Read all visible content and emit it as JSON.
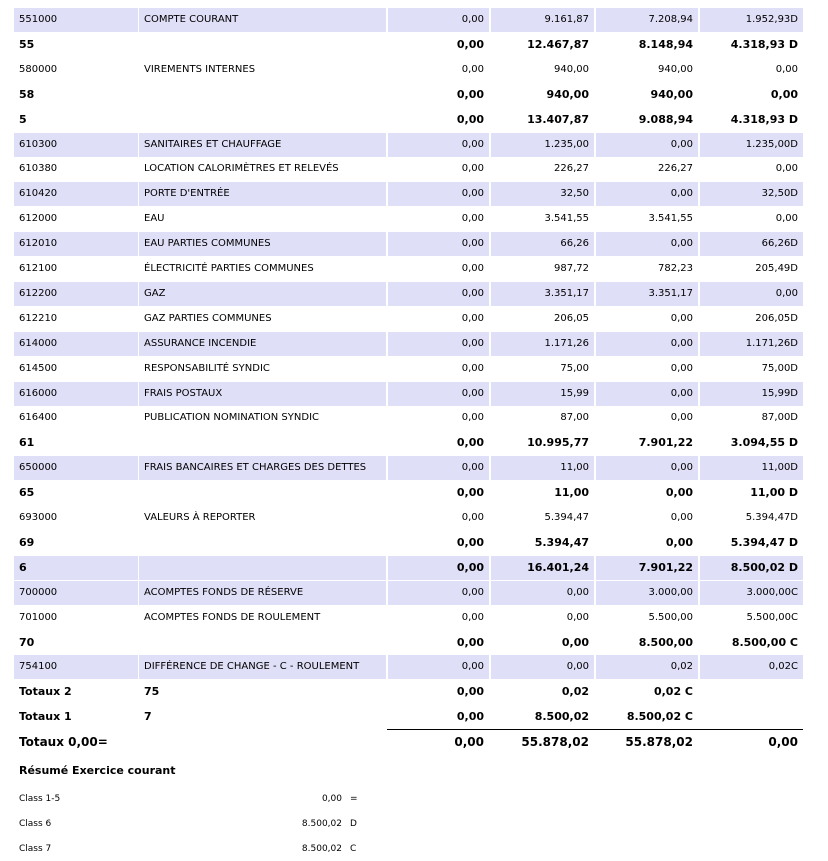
{
  "table": {
    "rows": [
      [
        "551000",
        "COMPTE COURANT",
        "0,00",
        "9.161,87",
        "7.208,94",
        "1.952,93D"
      ],
      [
        "55",
        null,
        "0,00",
        "12.467,87",
        "8.148,94",
        "4.318,93 D"
      ],
      [
        "580000",
        "VIREMENTS INTERNES",
        "0,00",
        "940,00",
        "940,00",
        "0,00"
      ],
      [
        "58",
        null,
        "0,00",
        "940,00",
        "940,00",
        "0,00"
      ],
      [
        "5",
        null,
        "0,00",
        "13.407,87",
        "9.088,94",
        "4.318,93 D"
      ],
      [
        "610300",
        "SANITAIRES ET CHAUFFAGE",
        "0,00",
        "1.235,00",
        "0,00",
        "1.235,00D"
      ],
      [
        "610380",
        "LOCATION CALORIMÈTRES ET RELEVÉS",
        "0,00",
        "226,27",
        "226,27",
        "0,00"
      ],
      [
        "610420",
        "PORTE D'ENTRÉE",
        "0,00",
        "32,50",
        "0,00",
        "32,50D"
      ],
      [
        "612000",
        "EAU",
        "0,00",
        "3.541,55",
        "3.541,55",
        "0,00"
      ],
      [
        "612010",
        "EAU PARTIES COMMUNES",
        "0,00",
        "66,26",
        "0,00",
        "66,26D"
      ],
      [
        "612100",
        "ÉLECTRICITÉ PARTIES COMMUNES",
        "0,00",
        "987,72",
        "782,23",
        "205,49D"
      ],
      [
        "612200",
        "GAZ",
        "0,00",
        "3.351,17",
        "3.351,17",
        "0,00"
      ],
      [
        "612210",
        "GAZ PARTIES COMMUNES",
        "0,00",
        "206,05",
        "0,00",
        "206,05D"
      ],
      [
        "614000",
        "ASSURANCE INCENDIE",
        "0,00",
        "1.171,26",
        "0,00",
        "1.171,26D"
      ],
      [
        "614500",
        "RESPONSABILITÉ SYNDIC",
        "0,00",
        "75,00",
        "0,00",
        "75,00D"
      ],
      [
        "616000",
        "FRAIS POSTAUX",
        "0,00",
        "15,99",
        "0,00",
        "15,99D"
      ],
      [
        "616400",
        "PUBLICATION NOMINATION SYNDIC",
        "0,00",
        "87,00",
        "0,00",
        "87,00D"
      ],
      [
        "61",
        null,
        "0,00",
        "10.995,77",
        "7.901,22",
        "3.094,55 D"
      ],
      [
        "650000",
        "FRAIS BANCAIRES ET CHARGES DES DETTES",
        "0,00",
        "11,00",
        "0,00",
        "11,00D"
      ],
      [
        "65",
        null,
        "0,00",
        "11,00",
        "0,00",
        "11,00 D"
      ],
      [
        "693000",
        "VALEURS À REPORTER",
        "0,00",
        "5.394,47",
        "0,00",
        "5.394,47D"
      ],
      [
        "69",
        null,
        "0,00",
        "5.394,47",
        "0,00",
        "5.394,47 D"
      ],
      [
        "6",
        null,
        "0,00",
        "16.401,24",
        "7.901,22",
        "8.500,02 D"
      ],
      [
        "700000",
        "ACOMPTES FONDS DE RÉSERVE",
        "0,00",
        "0,00",
        "3.000,00",
        "3.000,00C"
      ],
      [
        "701000",
        "ACOMPTES FONDS DE ROULEMENT",
        "0,00",
        "0,00",
        "5.500,00",
        "5.500,00C"
      ],
      [
        "70",
        null,
        "0,00",
        "0,00",
        "8.500,00",
        "8.500,00 C"
      ],
      [
        "754100",
        "DIFFÉRENCE DE CHANGE - C - ROULEMENT",
        "0,00",
        "0,00",
        "0,02",
        "0,02C"
      ],
      [
        "Totaux 2",
        "75",
        "0,00",
        "0,02",
        "0,02 C",
        null
      ],
      [
        "Totaux 1",
        "7",
        "0,00",
        "8.500,02",
        "8.500,02 C",
        null
      ],
      [
        "Totaux 0,00=",
        null,
        "0,00",
        "55.878,02",
        "55.878,02",
        "0,00"
      ]
    ]
  },
  "summary": {
    "title": "Résumé Exercice courant",
    "rows": [
      [
        "Class 1-5",
        "0,00",
        "="
      ],
      [
        "Class 6",
        "8.500,02",
        "D"
      ],
      [
        "Class 7",
        "8.500,02",
        "C"
      ]
    ]
  }
}
